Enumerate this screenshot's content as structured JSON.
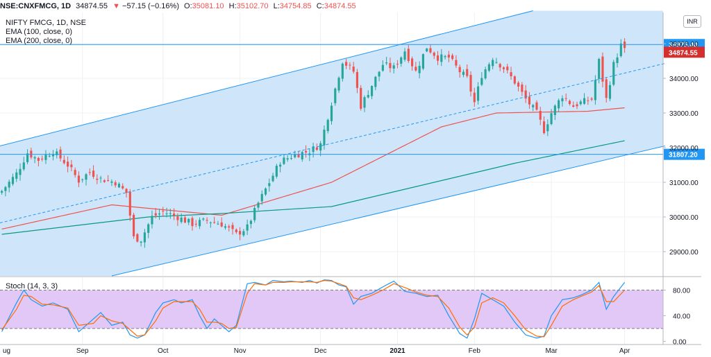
{
  "header": {
    "symbol": "NSE:CNXFMCG, 1D",
    "last": "34874.55",
    "arrow": "▼",
    "change": "−57.15 (−0.16%)",
    "o_label": "O:",
    "o": "35081.10",
    "h_label": "H:",
    "h": "35102.70",
    "l_label": "L:",
    "l": "34754.85",
    "c_label": "C:",
    "c": "34874.55"
  },
  "legend": {
    "title": "NIFTY FMCG, 1D, NSE",
    "ema100": "EMA (100, close, 0)",
    "ema200": "EMA (200, close, 0)",
    "stoch": "Stoch (14, 3, 3)"
  },
  "currency": "INR",
  "colors": {
    "up": "#26a69a",
    "down": "#ef5350",
    "channel_fill": "#cfe6fa",
    "channel_line": "#2196f3",
    "ema100": "#ef5350",
    "ema200": "#089981",
    "stoch_k": "#2196f3",
    "stoch_d": "#ff6d00",
    "stoch_band": "#e1c8f7",
    "last_price_bg": "#d32f2f",
    "hline_bg": "#2196f3"
  },
  "chart_data": [
    {
      "type": "candlestick",
      "title": "NIFTY FMCG, 1D, NSE",
      "ylim": [
        28300,
        35900
      ],
      "y_ticks": [
        "35000.00",
        "34000.00",
        "33000.00",
        "32000.00",
        "31000.00",
        "30000.00",
        "29000.00"
      ],
      "y_tick_values": [
        35000,
        34000,
        33000,
        32000,
        31000,
        30000,
        29000
      ],
      "x_ticks": [
        "ug",
        "Sep",
        "Oct",
        "Nov",
        "Dec",
        "2021",
        "Feb",
        "Mar",
        "Apr"
      ],
      "x_tick_index": [
        0,
        22,
        44,
        65,
        87,
        108,
        129,
        150,
        170
      ],
      "horizontal_levels": [
        {
          "value": 34975.4,
          "label": "34975.40"
        },
        {
          "value": 31807.2,
          "label": "31807.20"
        }
      ],
      "last_price": {
        "value": 34874.55,
        "label": "34874.55"
      },
      "close_anchors": [
        [
          0,
          30750
        ],
        [
          4,
          31250
        ],
        [
          7,
          31850
        ],
        [
          10,
          31650
        ],
        [
          14,
          31900
        ],
        [
          18,
          31500
        ],
        [
          21,
          31050
        ],
        [
          24,
          31300
        ],
        [
          27,
          31100
        ],
        [
          31,
          31000
        ],
        [
          34,
          30700
        ],
        [
          36,
          29400
        ],
        [
          38,
          29350
        ],
        [
          41,
          30000
        ],
        [
          44,
          30150
        ],
        [
          48,
          30000
        ],
        [
          52,
          29800
        ],
        [
          56,
          29900
        ],
        [
          60,
          29800
        ],
        [
          64,
          29500
        ],
        [
          67,
          29700
        ],
        [
          70,
          30400
        ],
        [
          73,
          31000
        ],
        [
          76,
          31600
        ],
        [
          80,
          31800
        ],
        [
          84,
          31900
        ],
        [
          87,
          32100
        ],
        [
          90,
          33300
        ],
        [
          93,
          34500
        ],
        [
          96,
          34200
        ],
        [
          98,
          33200
        ],
        [
          101,
          33800
        ],
        [
          104,
          34400
        ],
        [
          107,
          34300
        ],
        [
          110,
          34800
        ],
        [
          113,
          34200
        ],
        [
          116,
          34900
        ],
        [
          119,
          34600
        ],
        [
          122,
          34600
        ],
        [
          125,
          34200
        ],
        [
          127,
          34000
        ],
        [
          129,
          33300
        ],
        [
          131,
          34100
        ],
        [
          134,
          34600
        ],
        [
          137,
          34300
        ],
        [
          140,
          33900
        ],
        [
          143,
          33400
        ],
        [
          146,
          33000
        ],
        [
          148,
          32500
        ],
        [
          150,
          33000
        ],
        [
          153,
          33500
        ],
        [
          156,
          33200
        ],
        [
          158,
          33300
        ],
        [
          161,
          33400
        ],
        [
          163,
          34500
        ],
        [
          165,
          33400
        ],
        [
          167,
          34400
        ],
        [
          169,
          34950
        ],
        [
          170,
          34874.55
        ]
      ],
      "ema100": [
        [
          0,
          29650
        ],
        [
          30,
          30350
        ],
        [
          60,
          30050
        ],
        [
          90,
          31000
        ],
        [
          120,
          32600
        ],
        [
          135,
          33000
        ],
        [
          160,
          33050
        ],
        [
          170,
          33150
        ]
      ],
      "ema200": [
        [
          0,
          29500
        ],
        [
          40,
          30000
        ],
        [
          60,
          30100
        ],
        [
          90,
          30300
        ],
        [
          120,
          31050
        ],
        [
          140,
          31550
        ],
        [
          170,
          32200
        ]
      ],
      "channel": {
        "upper": [
          [
            -0.5,
            32050
          ],
          [
            145,
            35950
          ]
        ],
        "lower": [
          [
            30,
            28300
          ],
          [
            181,
            32050
          ]
        ],
        "mid": [
          [
            -0.5,
            29830
          ],
          [
            181,
            34430
          ]
        ]
      }
    },
    {
      "type": "line",
      "title": "Stoch (14, 3, 3)",
      "ylim": [
        -5,
        100
      ],
      "y_ticks": [
        "80.00",
        "40.00",
        "0.00"
      ],
      "y_tick_values": [
        80,
        40,
        0
      ],
      "band": [
        20,
        80
      ],
      "series": [
        {
          "key": "k",
          "values": [
            [
              0,
              15
            ],
            [
              4,
              60
            ],
            [
              6,
              80
            ],
            [
              8,
              65
            ],
            [
              11,
              55
            ],
            [
              14,
              60
            ],
            [
              18,
              50
            ],
            [
              21,
              15
            ],
            [
              25,
              35
            ],
            [
              27,
              45
            ],
            [
              30,
              25
            ],
            [
              33,
              30
            ],
            [
              35,
              10
            ],
            [
              37,
              5
            ],
            [
              39,
              10
            ],
            [
              42,
              45
            ],
            [
              44,
              60
            ],
            [
              47,
              65
            ],
            [
              49,
              60
            ],
            [
              52,
              65
            ],
            [
              54,
              40
            ],
            [
              56,
              20
            ],
            [
              58,
              35
            ],
            [
              60,
              25
            ],
            [
              62,
              15
            ],
            [
              64,
              25
            ],
            [
              67,
              90
            ],
            [
              69,
              92
            ],
            [
              72,
              88
            ],
            [
              74,
              95
            ],
            [
              77,
              93
            ],
            [
              79,
              94
            ],
            [
              82,
              92
            ],
            [
              84,
              95
            ],
            [
              86,
              91
            ],
            [
              88,
              96
            ],
            [
              90,
              95
            ],
            [
              92,
              88
            ],
            [
              94,
              85
            ],
            [
              96,
              58
            ],
            [
              98,
              70
            ],
            [
              101,
              75
            ],
            [
              104,
              85
            ],
            [
              107,
              94
            ],
            [
              110,
              78
            ],
            [
              113,
              75
            ],
            [
              116,
              70
            ],
            [
              119,
              72
            ],
            [
              122,
              40
            ],
            [
              125,
              12
            ],
            [
              127,
              5
            ],
            [
              129,
              35
            ],
            [
              131,
              75
            ],
            [
              134,
              65
            ],
            [
              137,
              55
            ],
            [
              140,
              30
            ],
            [
              143,
              10
            ],
            [
              146,
              5
            ],
            [
              148,
              8
            ],
            [
              150,
              40
            ],
            [
              153,
              65
            ],
            [
              156,
              68
            ],
            [
              158,
              72
            ],
            [
              161,
              80
            ],
            [
              163,
              92
            ],
            [
              165,
              50
            ],
            [
              167,
              70
            ],
            [
              170,
              92
            ]
          ]
        },
        {
          "key": "d",
          "values": [
            [
              0,
              18
            ],
            [
              4,
              50
            ],
            [
              6,
              72
            ],
            [
              8,
              70
            ],
            [
              11,
              58
            ],
            [
              14,
              57
            ],
            [
              18,
              52
            ],
            [
              21,
              25
            ],
            [
              25,
              28
            ],
            [
              27,
              40
            ],
            [
              30,
              32
            ],
            [
              33,
              28
            ],
            [
              35,
              18
            ],
            [
              37,
              8
            ],
            [
              39,
              10
            ],
            [
              42,
              32
            ],
            [
              44,
              52
            ],
            [
              47,
              62
            ],
            [
              49,
              62
            ],
            [
              52,
              62
            ],
            [
              54,
              50
            ],
            [
              56,
              30
            ],
            [
              58,
              30
            ],
            [
              60,
              28
            ],
            [
              62,
              20
            ],
            [
              64,
              22
            ],
            [
              67,
              75
            ],
            [
              69,
              90
            ],
            [
              72,
              88
            ],
            [
              74,
              92
            ],
            [
              77,
              92
            ],
            [
              79,
              93
            ],
            [
              82,
              93
            ],
            [
              84,
              93
            ],
            [
              86,
              92
            ],
            [
              88,
              95
            ],
            [
              90,
              94
            ],
            [
              92,
              90
            ],
            [
              94,
              86
            ],
            [
              96,
              68
            ],
            [
              98,
              65
            ],
            [
              101,
              72
            ],
            [
              104,
              80
            ],
            [
              107,
              90
            ],
            [
              110,
              84
            ],
            [
              113,
              77
            ],
            [
              116,
              72
            ],
            [
              119,
              70
            ],
            [
              122,
              52
            ],
            [
              125,
              22
            ],
            [
              127,
              10
            ],
            [
              129,
              22
            ],
            [
              131,
              60
            ],
            [
              134,
              68
            ],
            [
              137,
              60
            ],
            [
              140,
              40
            ],
            [
              143,
              18
            ],
            [
              146,
              8
            ],
            [
              148,
              7
            ],
            [
              150,
              25
            ],
            [
              153,
              55
            ],
            [
              156,
              65
            ],
            [
              158,
              70
            ],
            [
              161,
              77
            ],
            [
              163,
              87
            ],
            [
              165,
              62
            ],
            [
              167,
              62
            ],
            [
              170,
              80
            ]
          ]
        }
      ]
    }
  ]
}
